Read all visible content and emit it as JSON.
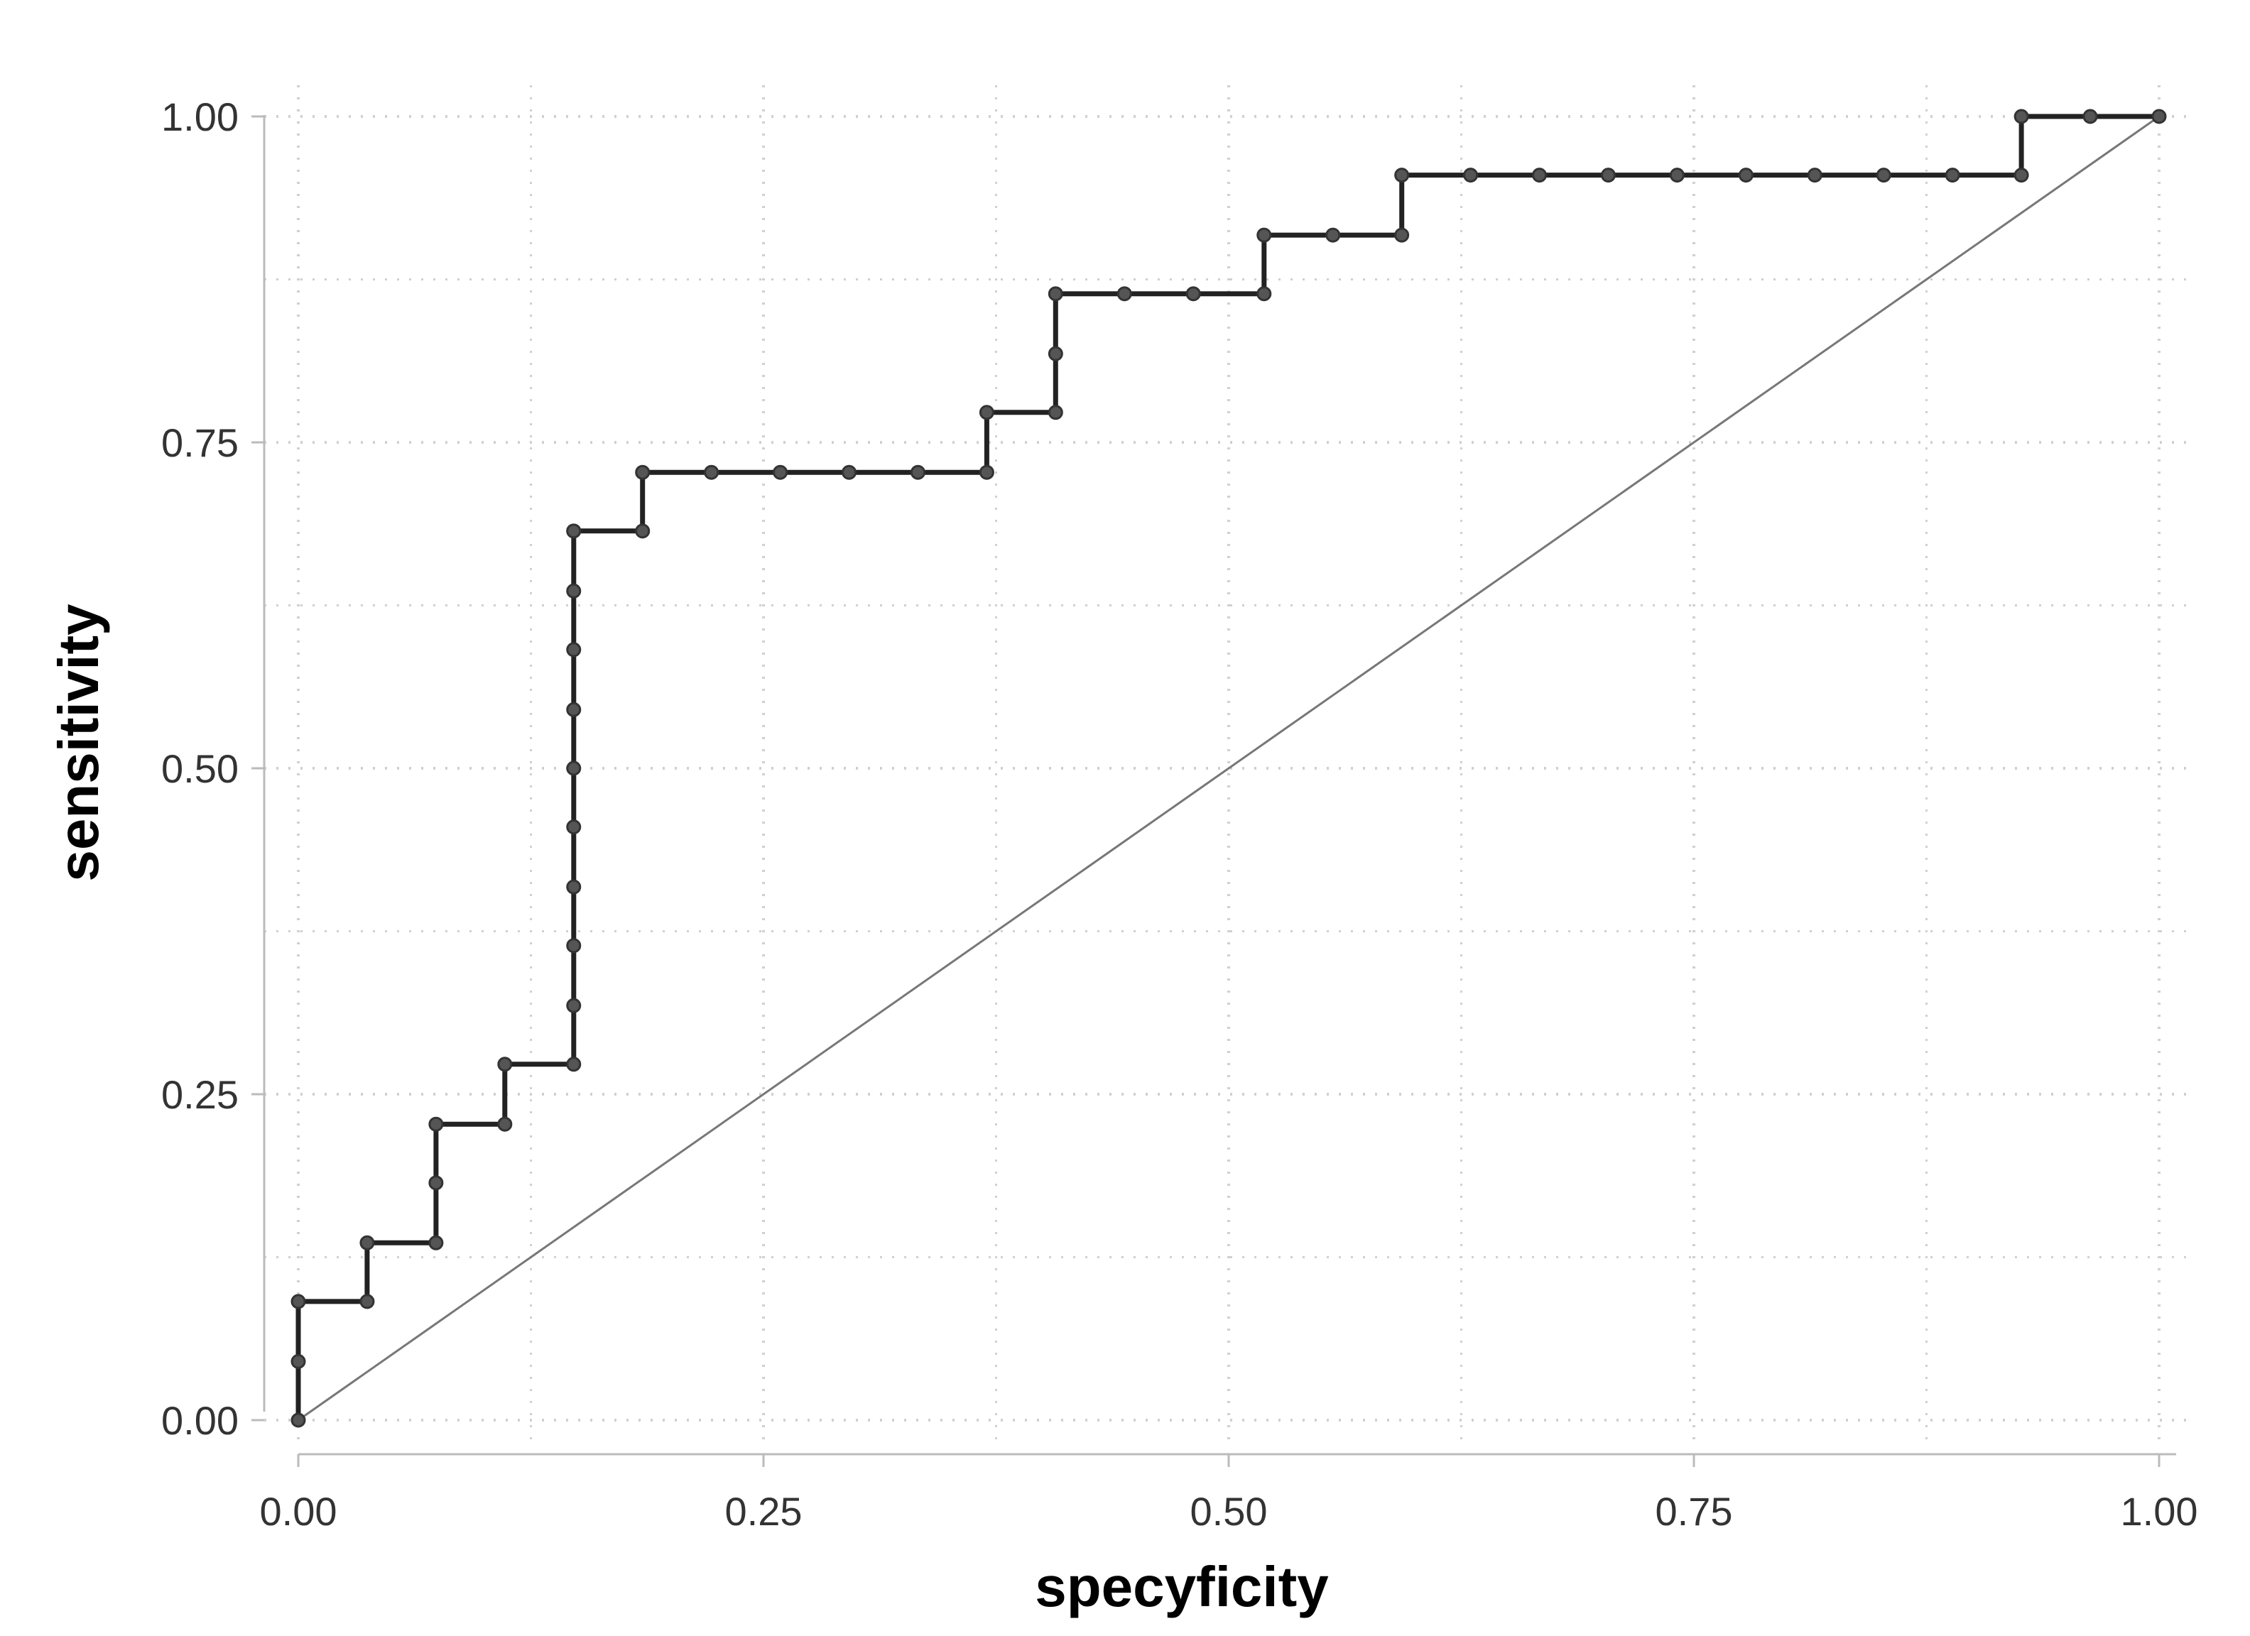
{
  "chart_data": {
    "type": "line",
    "xlabel": "specyficity",
    "ylabel": "sensitivity",
    "xlim": [
      0,
      1
    ],
    "ylim": [
      0,
      1
    ],
    "x_ticks": [
      "0.00",
      "0.25",
      "0.50",
      "0.75",
      "1.00"
    ],
    "y_ticks": [
      "0.00",
      "0.25",
      "0.50",
      "0.75",
      "1.00"
    ],
    "grid": "dotted",
    "legend": "none",
    "colors": {
      "curve": "#222222",
      "points": "#555555",
      "diagonal": "#777777",
      "grid": "#d0d0d0",
      "axis": "#bbbbbb"
    },
    "series": [
      {
        "style": "step-with-points",
        "x": [
          0.0,
          0.0,
          0.0,
          0.037,
          0.037,
          0.074,
          0.074,
          0.074,
          0.111,
          0.111,
          0.148,
          0.148,
          0.148,
          0.148,
          0.148,
          0.148,
          0.148,
          0.148,
          0.148,
          0.148,
          0.148,
          0.185,
          0.185,
          0.222,
          0.259,
          0.296,
          0.333,
          0.37,
          0.37,
          0.407,
          0.407,
          0.407,
          0.444,
          0.481,
          0.519,
          0.519,
          0.556,
          0.593,
          0.593,
          0.63,
          0.667,
          0.704,
          0.741,
          0.778,
          0.815,
          0.852,
          0.889,
          0.926,
          0.926,
          0.963,
          1.0
        ],
        "y": [
          0.0,
          0.045,
          0.091,
          0.091,
          0.136,
          0.136,
          0.182,
          0.227,
          0.227,
          0.273,
          0.273,
          0.318,
          0.364,
          0.409,
          0.455,
          0.5,
          0.545,
          0.591,
          0.636,
          0.682,
          0.682,
          0.682,
          0.727,
          0.727,
          0.727,
          0.727,
          0.727,
          0.727,
          0.773,
          0.773,
          0.818,
          0.864,
          0.864,
          0.864,
          0.864,
          0.909,
          0.909,
          0.909,
          0.955,
          0.955,
          0.955,
          0.955,
          0.955,
          0.955,
          0.955,
          0.955,
          0.955,
          0.955,
          1.0,
          1.0,
          1.0
        ]
      },
      {
        "style": "reference-diagonal",
        "x": [
          0,
          1
        ],
        "y": [
          0,
          1
        ]
      }
    ]
  }
}
